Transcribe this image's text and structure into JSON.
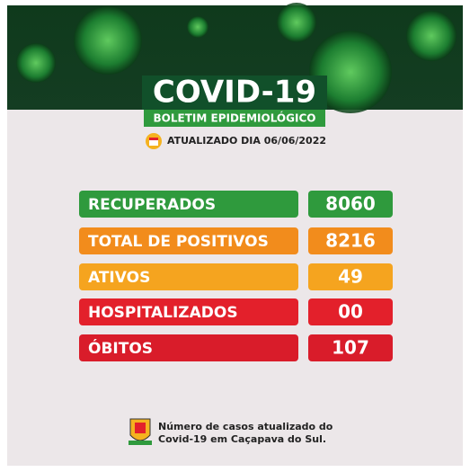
{
  "header": {
    "title": "COVID-19",
    "subtitle": "BOLETIM EPIDEMIOLÓGICO",
    "updated": "ATUALIZADO DIA 06/06/2022"
  },
  "rows": [
    {
      "label": "RECUPERADOS",
      "value": "8060",
      "color": "#2f9a3d"
    },
    {
      "label": "TOTAL DE POSITIVOS",
      "value": "8216",
      "color": "#f28c1c"
    },
    {
      "label": "ATIVOS",
      "value": "49",
      "color": "#f5a41f"
    },
    {
      "label": "HOSPITALIZADOS",
      "value": "00",
      "color": "#e3202b"
    },
    {
      "label": "ÓBITOS",
      "value": "107",
      "color": "#d91c2a"
    }
  ],
  "footer": {
    "lines": [
      "Número de casos atualizado do",
      "Covid-19 em Caçapava do Sul."
    ]
  }
}
